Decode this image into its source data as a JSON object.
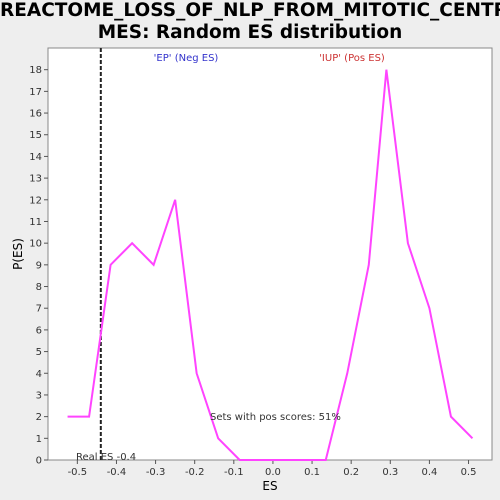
{
  "title_line1": "REACTOME_LOSS_OF_NLP_FROM_MITOTIC_CENTROSO",
  "title_line2": "MES: Random ES distribution",
  "colors": {
    "line": "#ff44ff",
    "neg_label": "#3333cc",
    "pos_label": "#cc3333",
    "real_es_line": "#222222",
    "plot_bg": "#ffffff"
  },
  "chart_data": {
    "type": "line",
    "title": "REACTOME_LOSS_OF_NLP_FROM_MITOTIC_CENTROSOMES: Random ES distribution",
    "xlabel": "ES",
    "ylabel": "P(ES)",
    "xlim": [
      -0.575,
      0.56
    ],
    "ylim": [
      0,
      19
    ],
    "xticks": [
      -0.5,
      -0.4,
      -0.3,
      -0.2,
      -0.1,
      0.0,
      0.1,
      0.2,
      0.3,
      0.4,
      0.5
    ],
    "xtick_labels": [
      "-0.5",
      "-0.4",
      "-0.3",
      "-0.2",
      "-0.1",
      "0.0",
      "0.1",
      "0.2",
      "0.3",
      "0.4",
      "0.5"
    ],
    "yticks": [
      0,
      1,
      2,
      3,
      4,
      5,
      6,
      7,
      8,
      9,
      10,
      11,
      12,
      13,
      14,
      15,
      16,
      17,
      18
    ],
    "x": [
      -0.525,
      -0.47,
      -0.415,
      -0.36,
      -0.305,
      -0.25,
      -0.195,
      -0.14,
      -0.085,
      -0.03,
      0.025,
      0.08,
      0.135,
      0.19,
      0.245,
      0.29,
      0.345,
      0.4,
      0.455,
      0.51
    ],
    "y": [
      2,
      2,
      9,
      10,
      9,
      12,
      4,
      1,
      0,
      0,
      0,
      0,
      0,
      4,
      9,
      18,
      10,
      7,
      2,
      1
    ],
    "real_es": -0.44,
    "annotations": {
      "neg": "'EP' (Neg ES)",
      "pos": "'IUP' (Pos ES)",
      "real_es": "Real ES -0.4",
      "pos_scores": "Sets with pos scores: 51%"
    },
    "grid": false
  }
}
